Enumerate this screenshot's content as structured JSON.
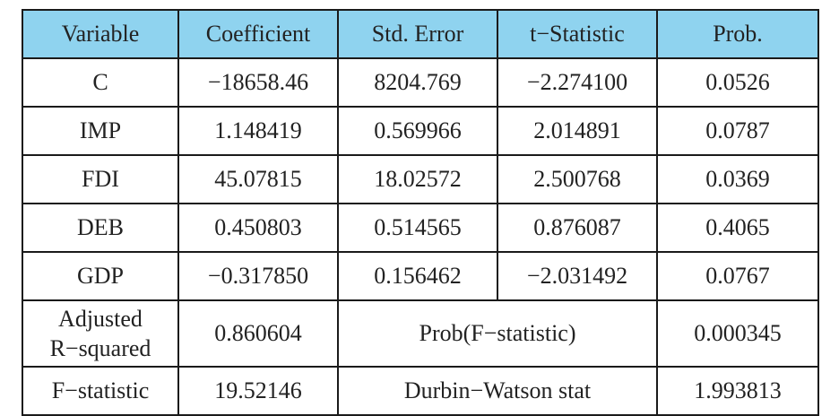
{
  "table": {
    "headers": [
      "Variable",
      "Coefficient",
      "Std. Error",
      "t−Statistic",
      "Prob."
    ],
    "rows": [
      [
        "C",
        "−18658.46",
        "8204.769",
        "−2.274100",
        "0.0526"
      ],
      [
        "IMP",
        "1.148419",
        "0.569966",
        "2.014891",
        "0.0787"
      ],
      [
        "FDI",
        "45.07815",
        "18.02572",
        "2.500768",
        "0.0369"
      ],
      [
        "DEB",
        "0.450803",
        "0.514565",
        "0.876087",
        "0.4065"
      ],
      [
        "GDP",
        "−0.317850",
        "0.156462",
        "−2.031492",
        "0.0767"
      ]
    ],
    "summary": [
      {
        "label_line1": "Adjusted",
        "label_line2": "R−squared",
        "value": "0.860604",
        "stat_label": "Prob(F−statistic)",
        "stat_value": "0.000345"
      },
      {
        "label": "F−statistic",
        "value": "19.52146",
        "stat_label": "Durbin−Watson stat",
        "stat_value": "1.993813"
      }
    ]
  },
  "colors": {
    "header_background": "#8fd3ef",
    "border": "#1a1a1a",
    "text": "#222222"
  }
}
